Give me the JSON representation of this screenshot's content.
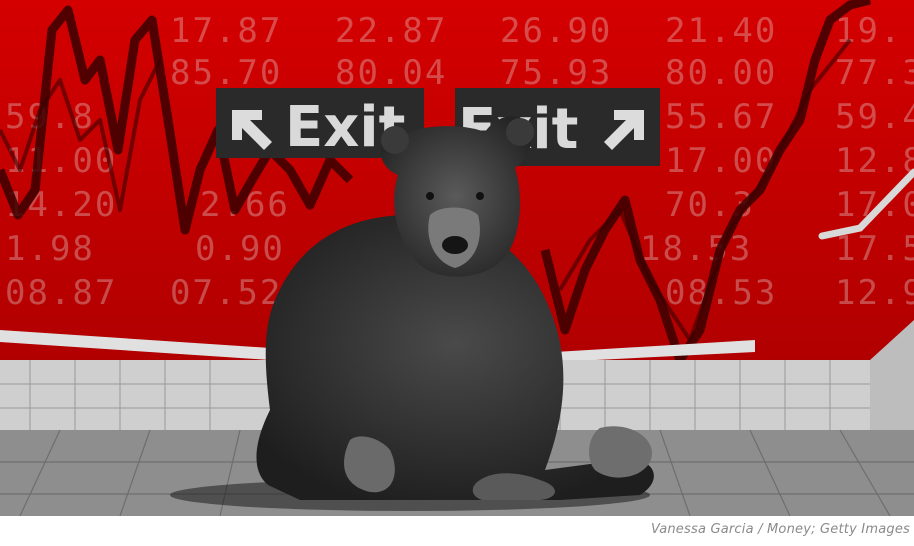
{
  "photo": {
    "signs": {
      "left_label": "Exit",
      "right_label": "Exit"
    },
    "board_rows": [
      [
        "17.87",
        "22.87",
        "26.90",
        "21.40",
        "19."
      ],
      [
        "85.70",
        "80.04",
        "75.93",
        "80.00",
        "77.3"
      ],
      [
        "59.8",
        "55.67",
        "59.4"
      ],
      [
        "11.00",
        "17.00",
        "12.8"
      ],
      [
        "14.20",
        "2.66",
        "70.3",
        "17.0"
      ],
      [
        "1.98",
        "0.90",
        "18.53",
        "17.5"
      ],
      [
        "08.87",
        "07.52",
        "08.53",
        "12.9"
      ]
    ],
    "colors": {
      "board_red": "#c90000",
      "floor_grey": "#8e8e8e",
      "bear_dark": "#2b2b2b"
    }
  },
  "credit": "Vanessa Garcia / Money; Getty Images"
}
